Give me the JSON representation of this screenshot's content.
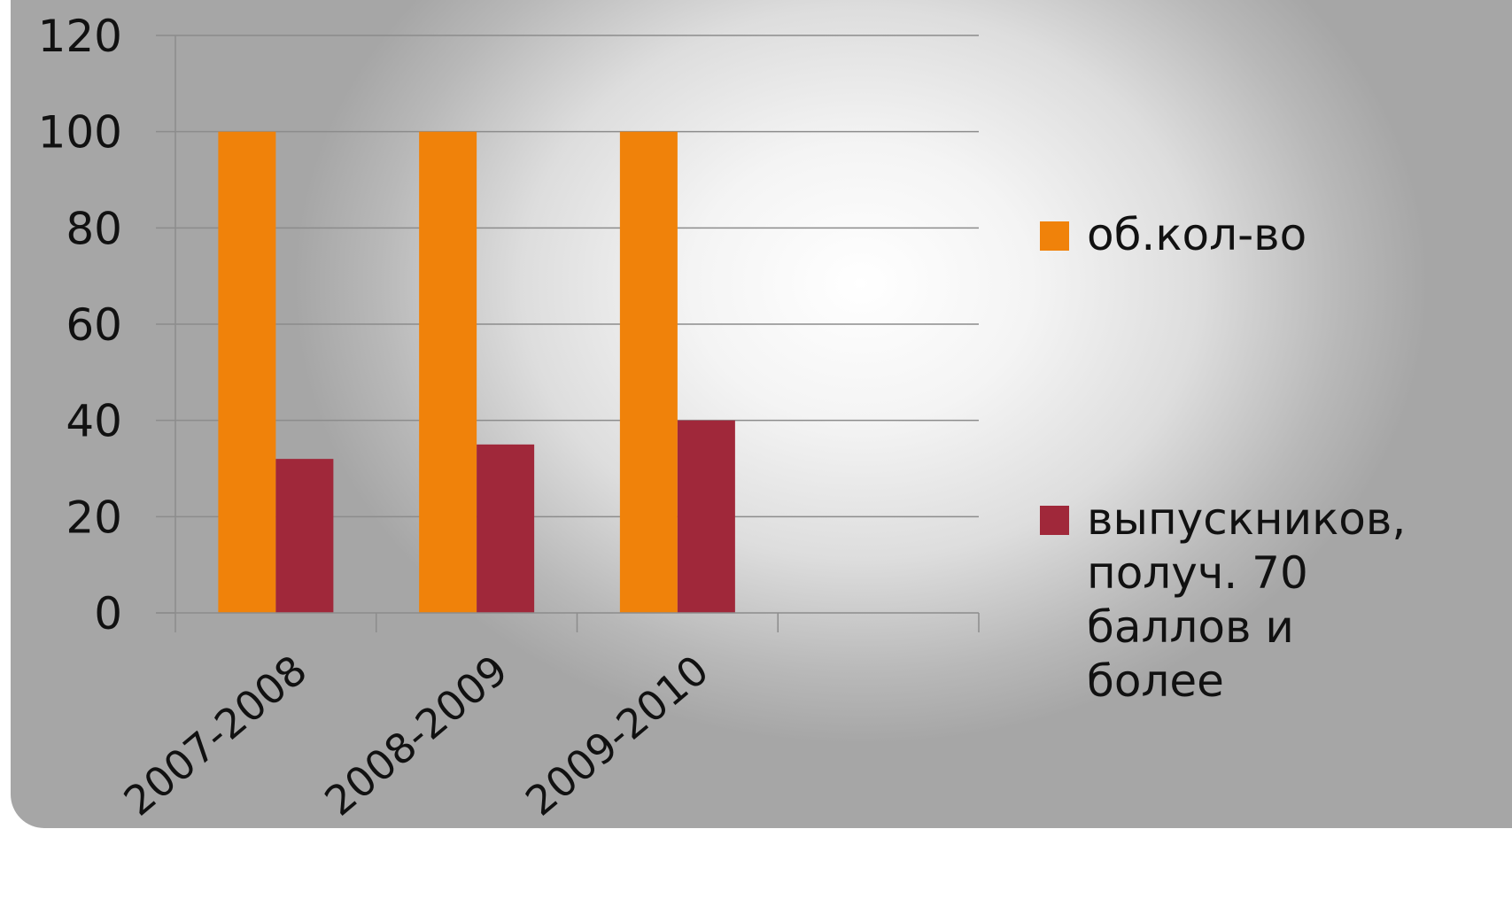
{
  "chart_data": {
    "type": "bar",
    "categories": [
      "2007-2008",
      "2008-2009",
      "2009-2010",
      ""
    ],
    "series": [
      {
        "name": "об.кол-во",
        "values": [
          100,
          100,
          100,
          null
        ],
        "color": "#f0820a"
      },
      {
        "name": "выпускников, получ. 70 баллов и более",
        "values": [
          32,
          35,
          40,
          null
        ],
        "color": "#a0283a"
      }
    ],
    "legend_lines": [
      [
        "об.кол-во"
      ],
      [
        "выпускников,",
        "получ. 70",
        "баллов и",
        "более"
      ]
    ],
    "yticks": [
      0,
      20,
      40,
      60,
      80,
      100,
      120
    ],
    "ylim": [
      0,
      120
    ],
    "grid": true,
    "legend_position": "right"
  }
}
